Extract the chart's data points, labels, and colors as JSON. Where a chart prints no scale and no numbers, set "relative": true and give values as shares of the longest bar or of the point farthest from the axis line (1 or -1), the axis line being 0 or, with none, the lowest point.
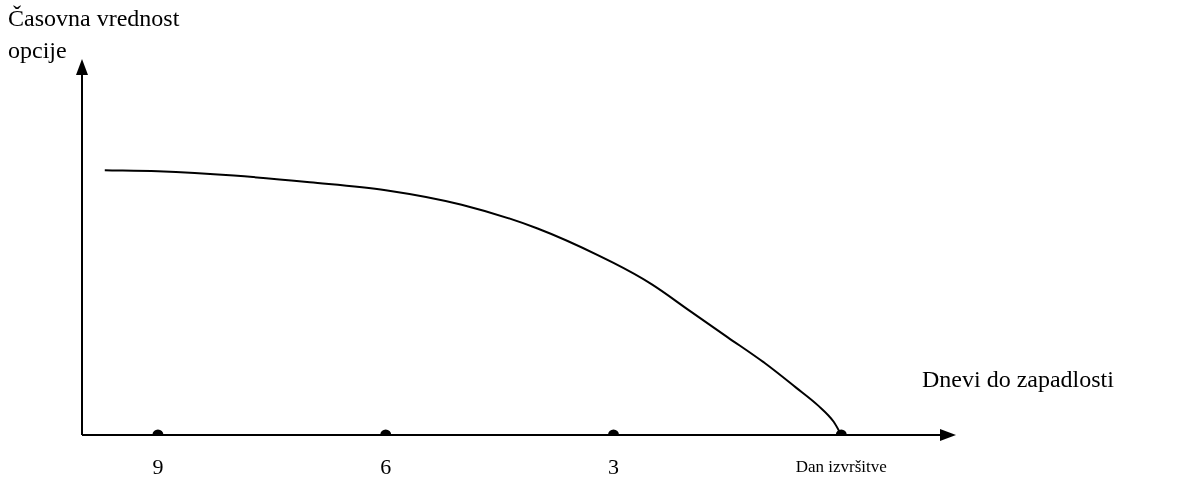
{
  "chart_data": {
    "type": "line",
    "xlabel": "Dnevi do zapadlosti",
    "ylabel": "Časovna vrednost opcije",
    "x": [
      9.7,
      9,
      8,
      7,
      6,
      5,
      4,
      3,
      2.5,
      2,
      1.5,
      1,
      0.6,
      0.3,
      0.1,
      0
    ],
    "series": [
      {
        "color": "#000000",
        "values": [
          1,
          0.996,
          0.98,
          0.955,
          0.925,
          0.87,
          0.78,
          0.65,
          0.57,
          0.47,
          0.37,
          0.27,
          0.18,
          0.11,
          0.05,
          0
        ]
      },
      {
        "type": "scatter",
        "color": "#000000",
        "marker": "circle",
        "x": [
          9,
          6,
          3,
          0
        ],
        "values": [
          0,
          0,
          0,
          0
        ]
      }
    ],
    "relative": true,
    "xlim": [
      10,
      -1.3
    ],
    "xticks": [
      9,
      6,
      3,
      {
        "value": 0,
        "label": "Dan izvršitve"
      }
    ],
    "grid": false,
    "legend": false,
    "marker": "none",
    "line_style": "solid"
  }
}
